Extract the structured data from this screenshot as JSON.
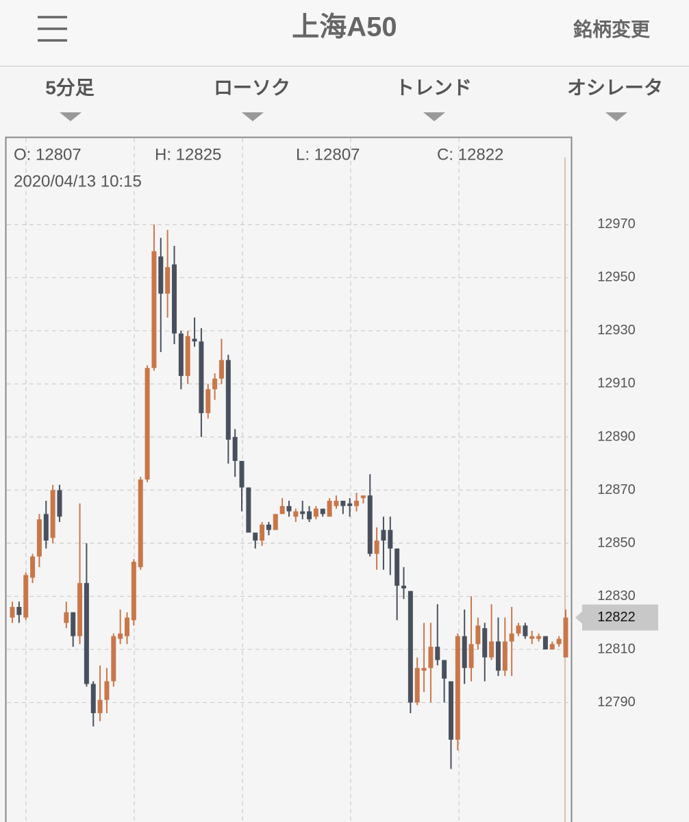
{
  "header": {
    "title": "上海A50",
    "action": "銘柄変更"
  },
  "tabs": [
    "5分足",
    "ローソク",
    "トレンド",
    "オシレータ"
  ],
  "info": {
    "open": "O: 12807",
    "high": "H: 12825",
    "low": "L: 12807",
    "close": "C: 12822",
    "datetime": "2020/04/13 10:15"
  },
  "chart_data": {
    "type": "candlestick",
    "up_color": "#c8774a",
    "down_color": "#48505e",
    "grid": true,
    "ylim": [
      12745,
      13003
    ],
    "yticks": [
      12790,
      12810,
      12830,
      12850,
      12870,
      12890,
      12910,
      12930,
      12950,
      12970
    ],
    "current_price": 12822,
    "open": [
      12822,
      12826,
      12822,
      12837,
      12845,
      12861,
      12852,
      12870,
      12820,
      12824,
      12815,
      12835,
      12797,
      12786,
      12791,
      12798,
      12814,
      12815,
      12821,
      12841,
      12874,
      12916,
      12958,
      12944,
      12955,
      12929,
      12913,
      12927,
      12926,
      12899,
      12908,
      12912,
      12919,
      12890,
      12881,
      12871,
      12854,
      12851,
      12857,
      12855,
      12861,
      12864,
      12860,
      12862,
      12862,
      12860,
      12863,
      12860,
      12864,
      12866,
      12865,
      12864,
      12867,
      12868,
      12846,
      12855,
      12855,
      12848,
      12834,
      12832,
      12790,
      12802,
      12803,
      12811,
      12806,
      12798,
      12776,
      12815,
      12803,
      12812,
      12818,
      12807,
      12813,
      12802,
      12813,
      12816,
      12819,
      12814,
      12814,
      12815,
      12810,
      12812,
      12807
    ],
    "high": [
      12828,
      12828,
      12839,
      12846,
      12861,
      12866,
      12872,
      12872,
      12828,
      12824,
      12865,
      12850,
      12798,
      12804,
      12803,
      12816,
      12825,
      12824,
      12844,
      12875,
      12917,
      12970,
      12965,
      12968,
      12962,
      12930,
      12930,
      12935,
      12931,
      12910,
      12914,
      12927,
      12921,
      12893,
      12881,
      12871,
      12854,
      12858,
      12858,
      12861,
      12867,
      12866,
      12863,
      12866,
      12864,
      12864,
      12863,
      12867,
      12868,
      12866,
      12867,
      12869,
      12868,
      12876,
      12856,
      12860,
      12860,
      12848,
      12841,
      12832,
      12807,
      12820,
      12820,
      12827,
      12806,
      12798,
      12816,
      12825,
      12830,
      12822,
      12820,
      12827,
      12822,
      12822,
      12826,
      12820,
      12820,
      12817,
      12816,
      12815,
      12813,
      12815,
      12825
    ],
    "low": [
      12820,
      12820,
      12821,
      12835,
      12841,
      12848,
      12850,
      12858,
      12818,
      12811,
      12812,
      12796,
      12781,
      12783,
      12786,
      12796,
      12812,
      12812,
      12819,
      12840,
      12873,
      12915,
      12922,
      12935,
      12925,
      12908,
      12910,
      12924,
      12890,
      12897,
      12904,
      12910,
      12880,
      12875,
      12862,
      12854,
      12848,
      12849,
      12853,
      12855,
      12861,
      12860,
      12858,
      12859,
      12858,
      12859,
      12860,
      12860,
      12863,
      12861,
      12860,
      12862,
      12865,
      12845,
      12840,
      12840,
      12838,
      12821,
      12829,
      12786,
      12789,
      12794,
      12790,
      12804,
      12790,
      12765,
      12772,
      12797,
      12798,
      12810,
      12798,
      12806,
      12800,
      12800,
      12800,
      12815,
      12814,
      12812,
      12813,
      12810,
      12810,
      12811,
      12807
    ],
    "close": [
      12826,
      12823,
      12838,
      12845,
      12859,
      12851,
      12870,
      12860,
      12824,
      12815,
      12835,
      12797,
      12786,
      12791,
      12798,
      12815,
      12816,
      12822,
      12843,
      12874,
      12916,
      12960,
      12944,
      12954,
      12929,
      12913,
      12928,
      12926,
      12899,
      12908,
      12912,
      12919,
      12889,
      12881,
      12871,
      12854,
      12851,
      12857,
      12855,
      12861,
      12864,
      12862,
      12862,
      12861,
      12859,
      12863,
      12861,
      12866,
      12866,
      12864,
      12864,
      12866,
      12868,
      12846,
      12851,
      12851,
      12848,
      12834,
      12833,
      12790,
      12803,
      12803,
      12811,
      12806,
      12799,
      12776,
      12815,
      12803,
      12812,
      12819,
      12807,
      12813,
      12802,
      12813,
      12816,
      12819,
      12815,
      12815,
      12815,
      12810,
      12812,
      12814,
      12822
    ]
  }
}
